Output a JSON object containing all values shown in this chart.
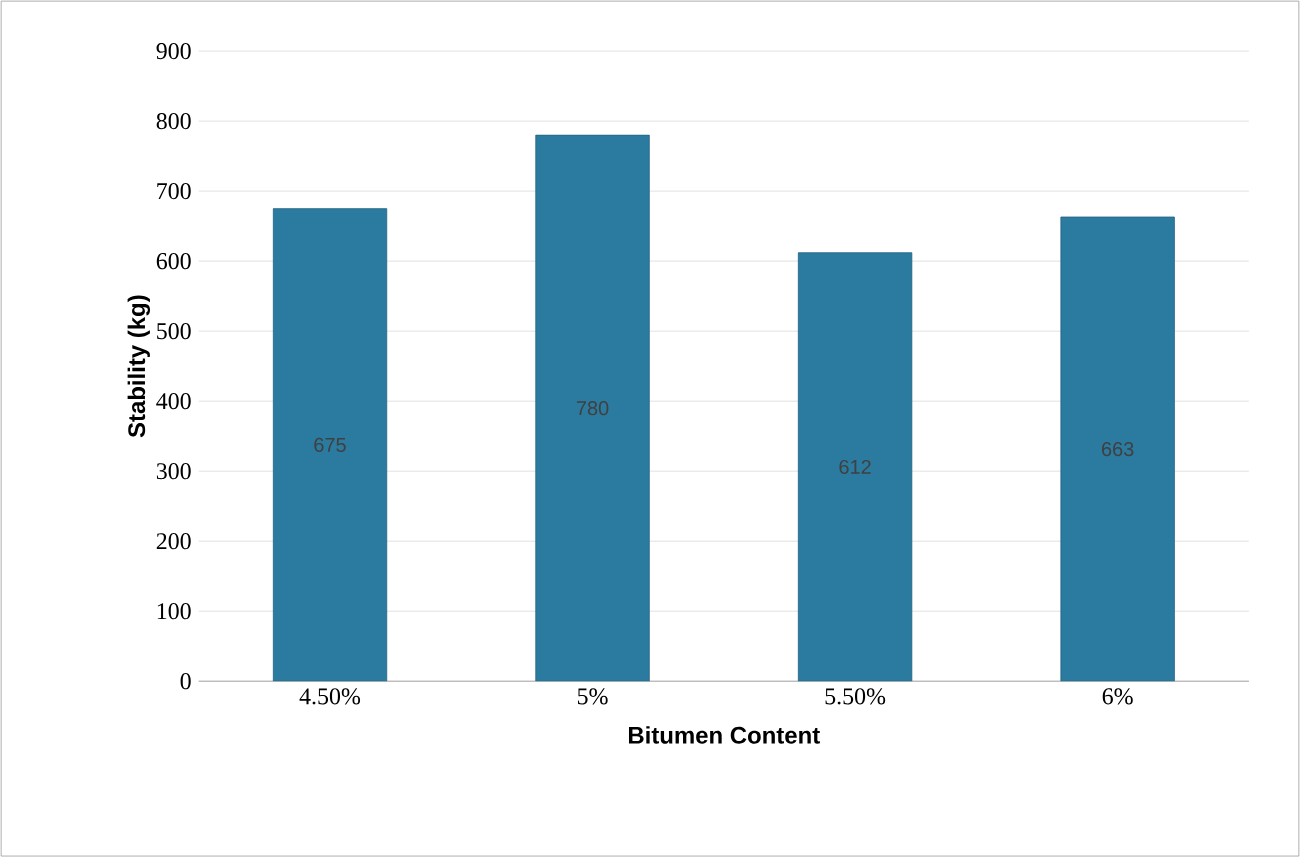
{
  "chart_data": {
    "type": "bar",
    "xlabel": "Bitumen Content",
    "ylabel": "Stability (kg)",
    "categories": [
      "4.50%",
      "5%",
      "5.50%",
      "6%"
    ],
    "values": [
      675,
      780,
      612,
      663
    ],
    "color": "#2b7ba0",
    "ylim": [
      0,
      900
    ],
    "yticks": [
      0,
      100,
      200,
      300,
      400,
      500,
      600,
      700,
      800,
      900
    ],
    "grid": "y",
    "data_labels": true
  }
}
